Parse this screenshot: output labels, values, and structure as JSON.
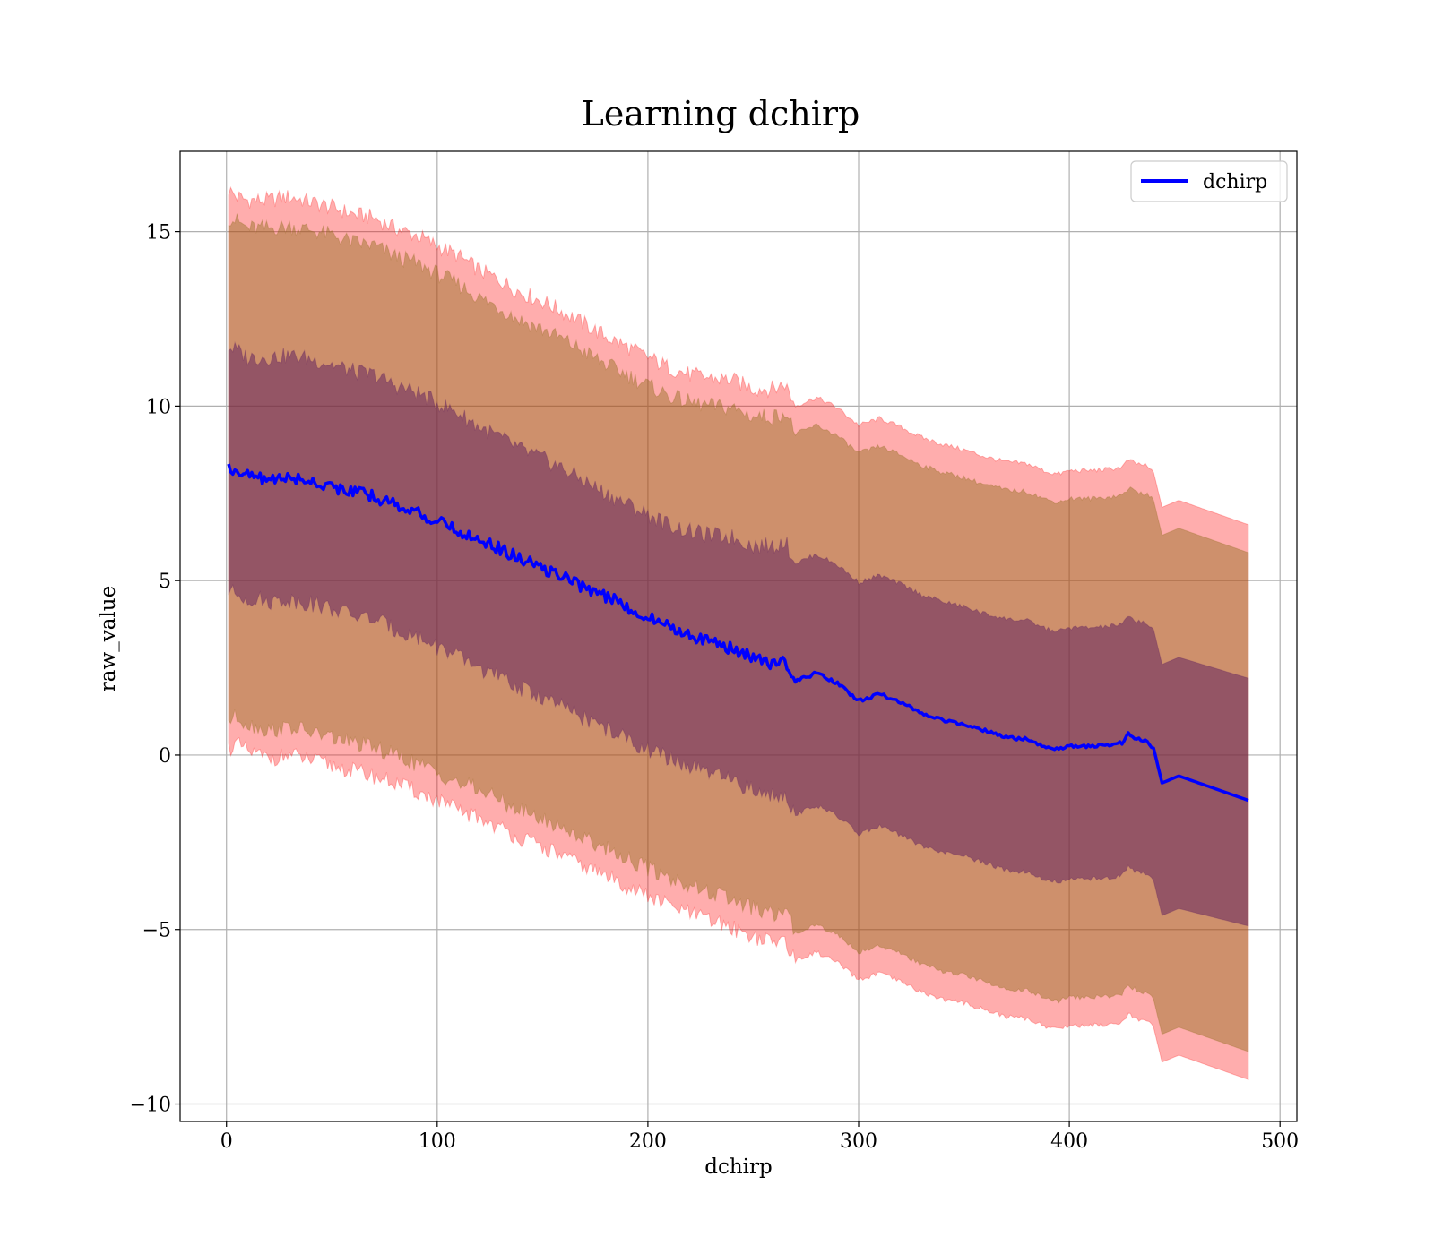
{
  "chart_data": {
    "type": "line",
    "title": "Learning dchirp",
    "xlabel": "dchirp",
    "ylabel": "raw_value",
    "xlim": [
      -22,
      508
    ],
    "ylim": [
      -10.5,
      17.3
    ],
    "xticks": [
      0,
      100,
      200,
      300,
      400,
      500
    ],
    "yticks": [
      -10,
      -5,
      0,
      5,
      10,
      15
    ],
    "xtick_labels": [
      "0",
      "100",
      "200",
      "300",
      "400",
      "500"
    ],
    "ytick_labels": [
      "−10",
      "−5",
      "0",
      "5",
      "10",
      "15"
    ],
    "grid": true,
    "legend": {
      "position": "top-right",
      "entries": [
        "dchirp"
      ]
    },
    "colors": {
      "line": "#0000ff",
      "band_outer": "#ff0000",
      "band_middle": "#8b6914",
      "band_inner": "#5a1a5e",
      "grid": "#b0b0b0"
    },
    "series": [
      {
        "name": "dchirp",
        "x": [
          1,
          5,
          10,
          20,
          30,
          40,
          50,
          60,
          70,
          80,
          90,
          100,
          110,
          120,
          130,
          140,
          150,
          160,
          170,
          180,
          190,
          200,
          210,
          220,
          230,
          240,
          250,
          260,
          265,
          270,
          280,
          290,
          300,
          310,
          320,
          330,
          340,
          350,
          360,
          370,
          380,
          390,
          395,
          400,
          410,
          420,
          425,
          428,
          432,
          436,
          440,
          444,
          452,
          485
        ],
        "y": [
          8.2,
          8.2,
          8.0,
          7.9,
          7.95,
          7.85,
          7.7,
          7.55,
          7.4,
          7.2,
          6.95,
          6.7,
          6.4,
          6.2,
          5.9,
          5.6,
          5.35,
          5.1,
          4.8,
          4.55,
          4.25,
          3.95,
          3.7,
          3.45,
          3.25,
          3.05,
          2.8,
          2.6,
          2.75,
          2.1,
          2.35,
          2.05,
          1.55,
          1.75,
          1.5,
          1.2,
          1.0,
          0.9,
          0.7,
          0.5,
          0.45,
          0.2,
          0.15,
          0.25,
          0.25,
          0.3,
          0.35,
          0.6,
          0.45,
          0.4,
          0.2,
          -0.8,
          -0.6,
          -1.3
        ]
      }
    ],
    "bands": [
      {
        "level": "outer",
        "upper": [
          16.2,
          16.0,
          15.9,
          15.9,
          16.0,
          15.85,
          15.7,
          15.5,
          15.4,
          15.1,
          14.9,
          14.6,
          14.3,
          13.9,
          13.6,
          13.25,
          13.0,
          12.7,
          12.35,
          12.0,
          11.7,
          11.4,
          11.1,
          10.9,
          10.8,
          10.75,
          10.5,
          10.5,
          10.65,
          10.0,
          10.25,
          9.95,
          9.45,
          9.65,
          9.4,
          9.1,
          8.9,
          8.75,
          8.55,
          8.4,
          8.35,
          8.1,
          8.05,
          8.15,
          8.15,
          8.2,
          8.25,
          8.45,
          8.35,
          8.3,
          8.1,
          7.1,
          7.3,
          6.6
        ],
        "lower": [
          0.2,
          0.3,
          0.1,
          -0.1,
          0.0,
          -0.15,
          -0.3,
          -0.45,
          -0.6,
          -0.8,
          -1.05,
          -1.3,
          -1.6,
          -1.8,
          -2.1,
          -2.4,
          -2.65,
          -2.9,
          -3.2,
          -3.45,
          -3.75,
          -4.05,
          -4.3,
          -4.55,
          -4.75,
          -4.95,
          -5.2,
          -5.4,
          -5.25,
          -5.9,
          -5.65,
          -5.95,
          -6.45,
          -6.25,
          -6.5,
          -6.8,
          -7.0,
          -7.1,
          -7.3,
          -7.5,
          -7.55,
          -7.8,
          -7.85,
          -7.75,
          -7.75,
          -7.7,
          -7.65,
          -7.4,
          -7.55,
          -7.6,
          -7.8,
          -8.8,
          -8.6,
          -9.3
        ]
      },
      {
        "level": "middle",
        "upper": [
          15.4,
          15.3,
          15.1,
          15.1,
          15.15,
          15.05,
          14.9,
          14.7,
          14.6,
          14.3,
          14.1,
          13.8,
          13.5,
          13.1,
          12.8,
          12.45,
          12.2,
          11.9,
          11.55,
          11.2,
          10.9,
          10.6,
          10.3,
          10.1,
          10.0,
          9.95,
          9.7,
          9.7,
          9.85,
          9.2,
          9.45,
          9.15,
          8.65,
          8.85,
          8.6,
          8.3,
          8.1,
          7.95,
          7.75,
          7.6,
          7.55,
          7.3,
          7.25,
          7.35,
          7.35,
          7.4,
          7.45,
          7.65,
          7.55,
          7.5,
          7.3,
          6.3,
          6.5,
          5.8
        ],
        "lower": [
          1.0,
          1.1,
          0.9,
          0.7,
          0.8,
          0.65,
          0.5,
          0.35,
          0.2,
          0.0,
          -0.25,
          -0.5,
          -0.8,
          -1.0,
          -1.3,
          -1.6,
          -1.85,
          -2.1,
          -2.4,
          -2.65,
          -2.95,
          -3.25,
          -3.5,
          -3.75,
          -3.95,
          -4.15,
          -4.4,
          -4.6,
          -4.45,
          -5.1,
          -4.85,
          -5.15,
          -5.65,
          -5.45,
          -5.7,
          -6.0,
          -6.2,
          -6.3,
          -6.5,
          -6.7,
          -6.75,
          -7.0,
          -7.05,
          -6.95,
          -6.95,
          -6.9,
          -6.85,
          -6.6,
          -6.75,
          -6.8,
          -7.0,
          -8.0,
          -7.8,
          -8.5
        ]
      },
      {
        "level": "inner",
        "upper": [
          11.7,
          11.6,
          11.4,
          11.4,
          11.45,
          11.35,
          11.2,
          11.0,
          10.9,
          10.6,
          10.4,
          10.1,
          9.8,
          9.4,
          9.1,
          8.75,
          8.5,
          8.2,
          7.85,
          7.5,
          7.2,
          6.9,
          6.6,
          6.4,
          6.3,
          6.25,
          6.0,
          6.0,
          6.15,
          5.5,
          5.75,
          5.45,
          4.95,
          5.15,
          4.9,
          4.6,
          4.4,
          4.25,
          4.05,
          3.9,
          3.85,
          3.6,
          3.55,
          3.65,
          3.65,
          3.7,
          3.75,
          3.95,
          3.85,
          3.8,
          3.6,
          2.6,
          2.8,
          2.2
        ],
        "lower": [
          4.7,
          4.6,
          4.5,
          4.4,
          4.45,
          4.35,
          4.2,
          4.0,
          3.9,
          3.6,
          3.4,
          3.1,
          2.8,
          2.5,
          2.2,
          1.9,
          1.65,
          1.35,
          1.05,
          0.75,
          0.45,
          0.15,
          -0.1,
          -0.35,
          -0.55,
          -0.75,
          -1.0,
          -1.2,
          -1.05,
          -1.7,
          -1.45,
          -1.75,
          -2.25,
          -2.05,
          -2.3,
          -2.6,
          -2.8,
          -2.9,
          -3.1,
          -3.3,
          -3.35,
          -3.6,
          -3.65,
          -3.55,
          -3.55,
          -3.5,
          -3.45,
          -3.2,
          -3.35,
          -3.4,
          -3.6,
          -4.6,
          -4.4,
          -4.9
        ]
      }
    ]
  }
}
